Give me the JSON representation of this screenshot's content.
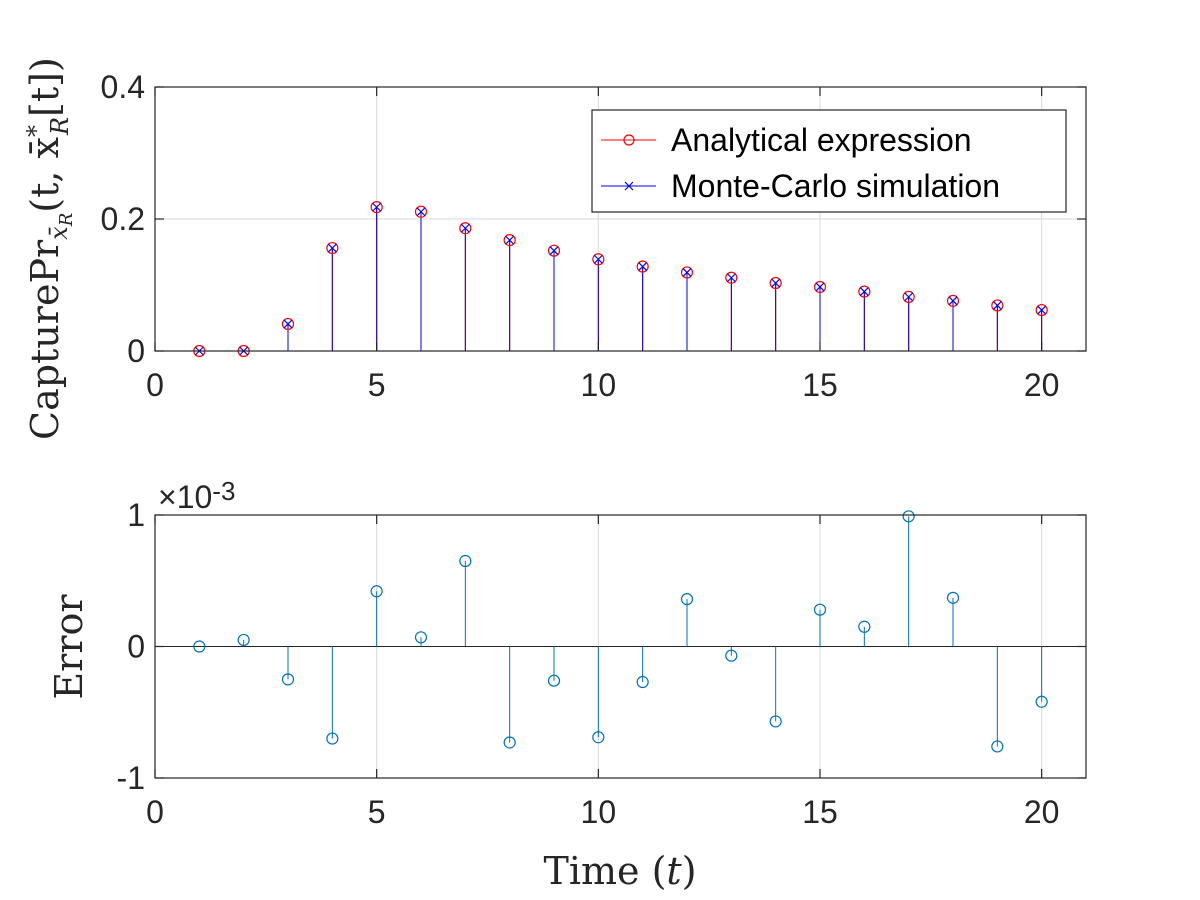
{
  "colors": {
    "analytical": "#ff0000",
    "montecarlo": "#0000ff",
    "error": "#0072bd",
    "axis": "#262626",
    "grid": "#d9d9d9"
  },
  "chart_data": [
    {
      "type": "stem",
      "ylabel_text": "CapturePr",
      "ylabel_sub": "x̄",
      "ylabel_subsub": "R",
      "ylabel_args": "(t, x̄",
      "ylabel_sup": "*",
      "ylabel_argsub": "R",
      "ylabel_tail": "[t])",
      "xlim": [
        0,
        21
      ],
      "ylim": [
        0,
        0.4
      ],
      "xticks": [
        0,
        5,
        10,
        15,
        20
      ],
      "xtick_labels": [
        "0",
        "5",
        "10",
        "15",
        "20"
      ],
      "yticks": [
        0,
        0.2,
        0.4
      ],
      "ytick_labels": [
        "0",
        "0.2",
        "0.4"
      ],
      "grid": true,
      "legend_position": "top-right",
      "x": [
        1,
        2,
        3,
        4,
        5,
        6,
        7,
        8,
        9,
        10,
        11,
        12,
        13,
        14,
        15,
        16,
        17,
        18,
        19,
        20
      ],
      "series": [
        {
          "name": "Analytical expression",
          "marker": "o",
          "values": [
            0,
            0,
            0.041,
            0.156,
            0.218,
            0.211,
            0.186,
            0.168,
            0.152,
            0.139,
            0.128,
            0.119,
            0.111,
            0.103,
            0.097,
            0.09,
            0.082,
            0.076,
            0.069,
            0.062
          ]
        },
        {
          "name": "Monte-Carlo simulation",
          "marker": "x",
          "values": [
            0,
            0,
            0.041,
            0.156,
            0.218,
            0.211,
            0.186,
            0.168,
            0.152,
            0.139,
            0.128,
            0.119,
            0.111,
            0.103,
            0.097,
            0.09,
            0.082,
            0.076,
            0.069,
            0.062
          ]
        }
      ]
    },
    {
      "type": "stem",
      "ylabel": "Error",
      "xlabel": "Time (t)",
      "xlabel_prefix": "Time (",
      "xlabel_var": "t",
      "xlabel_suffix": ")",
      "exponent_label_prefix": "×10",
      "exponent_label_power": "-3",
      "xlim": [
        0,
        21
      ],
      "ylim": [
        -1,
        1
      ],
      "xticks": [
        0,
        5,
        10,
        15,
        20
      ],
      "xtick_labels": [
        "0",
        "5",
        "10",
        "15",
        "20"
      ],
      "yticks": [
        -1,
        0,
        1
      ],
      "ytick_labels": [
        "-1",
        "0",
        "1"
      ],
      "grid": true,
      "x": [
        1,
        2,
        3,
        4,
        5,
        6,
        7,
        8,
        9,
        10,
        11,
        12,
        13,
        14,
        15,
        16,
        17,
        18,
        19,
        20
      ],
      "series": [
        {
          "name": "Error",
          "marker": "o",
          "values": [
            0.0,
            0.05,
            -0.25,
            -0.7,
            0.42,
            0.07,
            0.65,
            -0.73,
            -0.26,
            -0.69,
            -0.27,
            0.36,
            -0.07,
            -0.57,
            0.28,
            0.15,
            0.99,
            0.37,
            -0.76,
            -0.42
          ]
        }
      ]
    }
  ]
}
